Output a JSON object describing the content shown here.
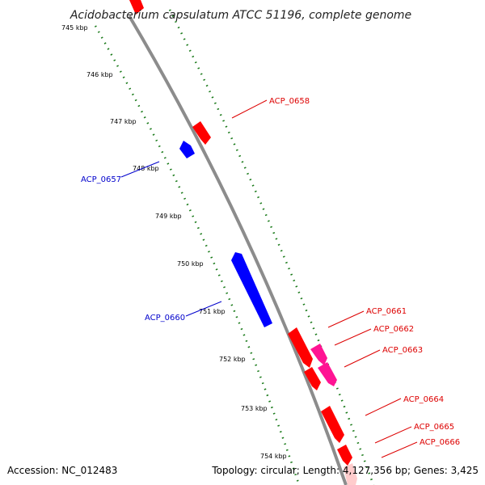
{
  "title": "Acidobacterium capsulatum ATCC 51196, complete genome",
  "accession": "Accession: NC_012483",
  "summary": "Topology: circular; Length: 4,127,356 bp; Genes: 3,425",
  "colors": {
    "forward_gene": "#ff0000",
    "reverse_gene": "#0000ff",
    "rna_gene": "#ff1493",
    "backbone": "#8c8c8c",
    "gc_track": "#1a7a1a"
  },
  "ticks": [
    "745 kbp",
    "746 kbp",
    "747 kbp",
    "748 kbp",
    "749 kbp",
    "750 kbp",
    "751 kbp",
    "752 kbp",
    "753 kbp",
    "754 kbp"
  ],
  "genes": {
    "reverse": [
      "ACP_0657",
      "ACP_0660"
    ],
    "forward": [
      "ACP_0658",
      "ACP_0661",
      "ACP_0662",
      "ACP_0663",
      "ACP_0664",
      "ACP_0665",
      "ACP_0666"
    ]
  }
}
